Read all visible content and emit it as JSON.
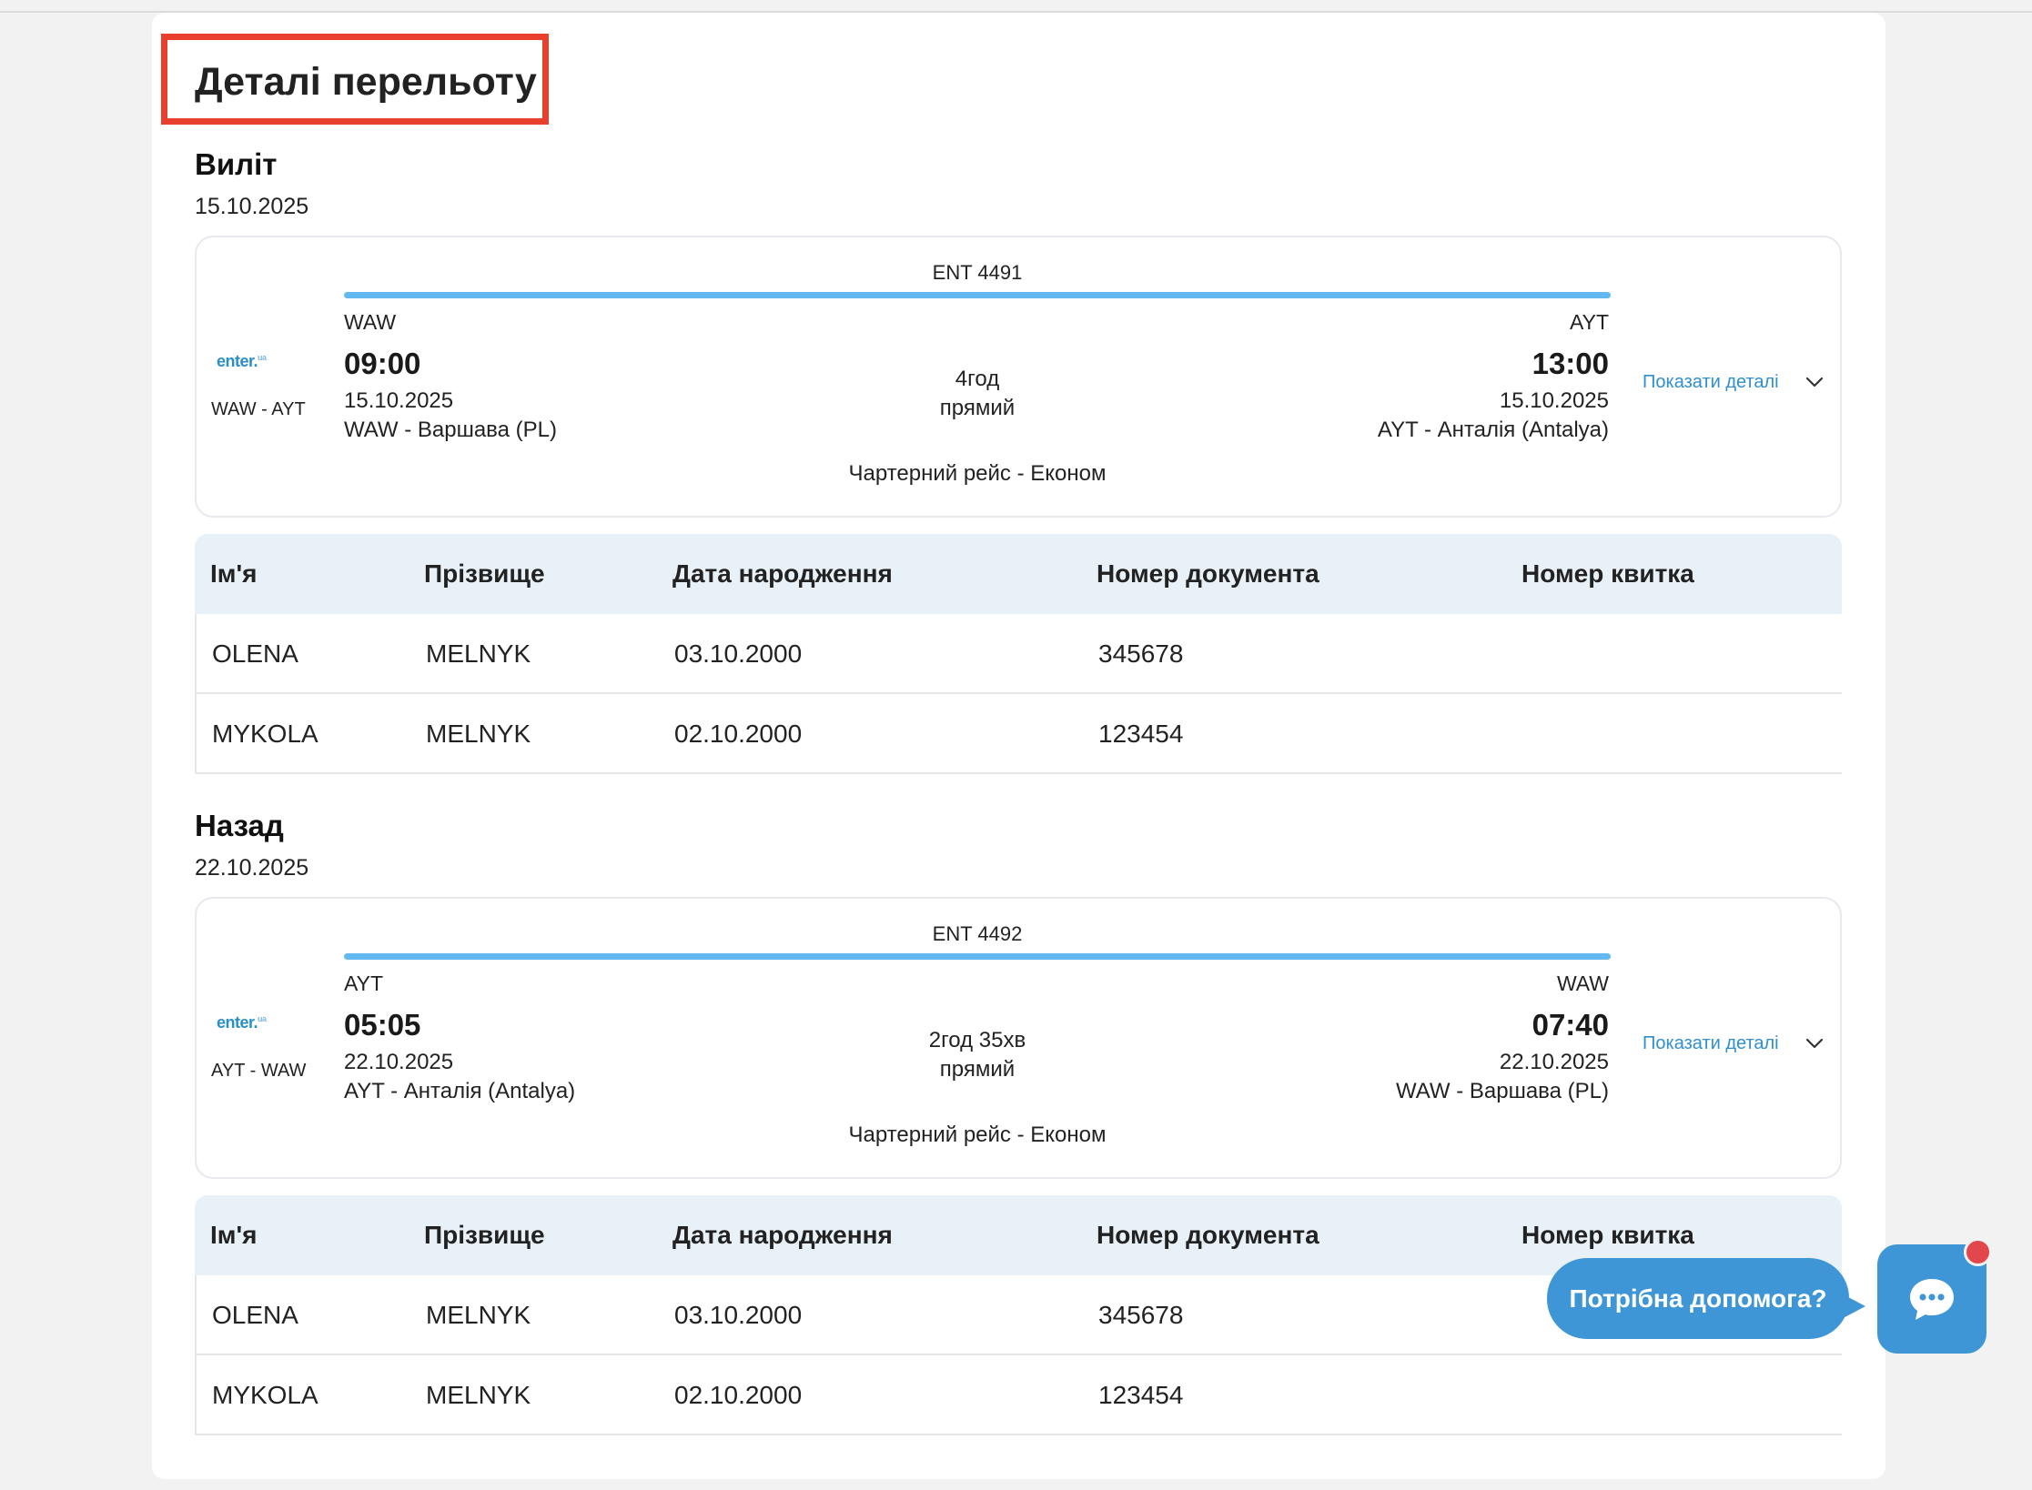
{
  "page": {
    "title": "Деталі перельоту"
  },
  "sections": [
    {
      "label": "Виліт",
      "date": "15.10.2025",
      "flight": {
        "airline_logo": "enter.",
        "route": "WAW - AYT",
        "flight_number": "ENT 4491",
        "departure": {
          "code": "WAW",
          "time": "09:00",
          "date": "15.10.2025",
          "city": "WAW - Варшава (PL)"
        },
        "arrival": {
          "code": "AYT",
          "time": "13:00",
          "date": "15.10.2025",
          "city": "AYT - Анталія (Antalya)"
        },
        "duration": "4год",
        "stops": "прямий",
        "flight_class": "Чартерний рейс -  Економ",
        "details_link": "Показати деталі"
      },
      "passengers": {
        "headers": [
          "Ім'я",
          "Прізвище",
          "Дата народження",
          "Номер документа",
          "Номер квитка"
        ],
        "rows": [
          [
            "OLENA",
            "MELNYK",
            "03.10.2000",
            "345678",
            ""
          ],
          [
            "MYKOLA",
            "MELNYK",
            "02.10.2000",
            "123454",
            ""
          ]
        ]
      }
    },
    {
      "label": "Назад",
      "date": "22.10.2025",
      "flight": {
        "airline_logo": "enter.",
        "route": "AYT - WAW",
        "flight_number": "ENT 4492",
        "departure": {
          "code": "AYT",
          "time": "05:05",
          "date": "22.10.2025",
          "city": "AYT - Анталія (Antalya)"
        },
        "arrival": {
          "code": "WAW",
          "time": "07:40",
          "date": "22.10.2025",
          "city": "WAW - Варшава (PL)"
        },
        "duration": "2год 35хв",
        "stops": "прямий",
        "flight_class": "Чартерний рейс -  Економ",
        "details_link": "Показати деталі"
      },
      "passengers": {
        "headers": [
          "Ім'я",
          "Прізвище",
          "Дата народження",
          "Номер документа",
          "Номер квитка"
        ],
        "rows": [
          [
            "OLENA",
            "MELNYK",
            "03.10.2000",
            "345678",
            ""
          ],
          [
            "MYKOLA",
            "MELNYK",
            "02.10.2000",
            "123454",
            ""
          ]
        ]
      }
    }
  ],
  "help_widget": {
    "label": "Потрібна допомога?",
    "icon": "chat-icon",
    "notification_color": "#e2474c"
  },
  "colors": {
    "accent": "#3f96d6",
    "route_bar": "#63b9ef",
    "title_highlight": "#e8402c",
    "table_header_bg": "#e8f0f8"
  }
}
